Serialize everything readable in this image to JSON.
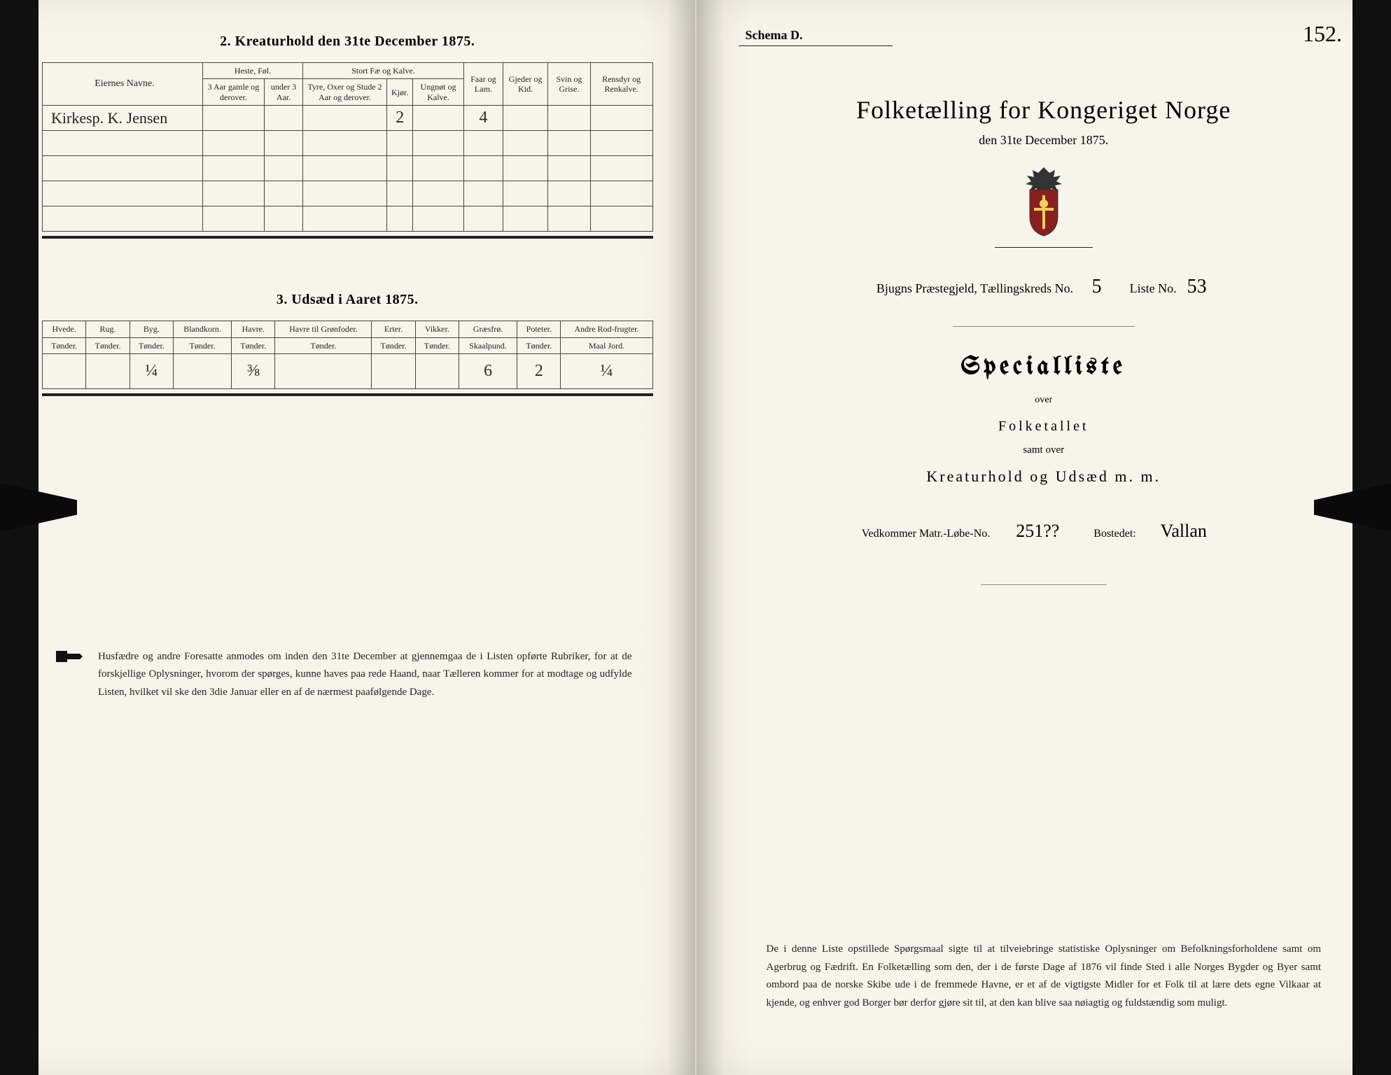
{
  "colors": {
    "paper": "#f7f4eb",
    "ink": "#222222",
    "rule": "#444444",
    "shadow": "#1a1a1a",
    "handwriting": "#2a2a2a"
  },
  "left_page": {
    "section2": {
      "title": "2.  Kreaturhold den 31te December 1875.",
      "owner_header": "Eiernes Navne.",
      "group_headers": {
        "heste": "Heste, Føl.",
        "stort": "Stort Fæ og Kalve."
      },
      "col_headers": {
        "heste_a": "3 Aar gamle og derover.",
        "heste_b": "under 3 Aar.",
        "stort_a": "Tyre, Oxer og Stude 2 Aar og derover.",
        "stort_b": "Kjør.",
        "stort_c": "Ungnøt og Kalve.",
        "faar": "Faar og Lam.",
        "gjeder": "Gjeder og Kid.",
        "svin": "Svin og Grise.",
        "rensdyr": "Rensdyr og Renkalve."
      },
      "rows": [
        {
          "owner": "Kirkesp. K. Jensen",
          "heste_a": "",
          "heste_b": "",
          "stort_a": "",
          "stort_b": "2",
          "stort_c": "",
          "faar": "4",
          "gjeder": "",
          "svin": "",
          "rensdyr": ""
        },
        {
          "owner": "",
          "heste_a": "",
          "heste_b": "",
          "stort_a": "",
          "stort_b": "",
          "stort_c": "",
          "faar": "",
          "gjeder": "",
          "svin": "",
          "rensdyr": ""
        },
        {
          "owner": "",
          "heste_a": "",
          "heste_b": "",
          "stort_a": "",
          "stort_b": "",
          "stort_c": "",
          "faar": "",
          "gjeder": "",
          "svin": "",
          "rensdyr": ""
        },
        {
          "owner": "",
          "heste_a": "",
          "heste_b": "",
          "stort_a": "",
          "stort_b": "",
          "stort_c": "",
          "faar": "",
          "gjeder": "",
          "svin": "",
          "rensdyr": ""
        },
        {
          "owner": "",
          "heste_a": "",
          "heste_b": "",
          "stort_a": "",
          "stort_b": "",
          "stort_c": "",
          "faar": "",
          "gjeder": "",
          "svin": "",
          "rensdyr": ""
        }
      ]
    },
    "section3": {
      "title": "3.  Udsæd i Aaret 1875.",
      "col_headers": {
        "hvede": "Hvede.",
        "rug": "Rug.",
        "byg": "Byg.",
        "blandkorn": "Blandkorn.",
        "havre": "Havre.",
        "havre_gron": "Havre til Grønfoder.",
        "erter": "Erter.",
        "vikker": "Vikker.",
        "graesfro": "Græsfrø.",
        "poteter": "Poteter.",
        "andre": "Andre Rod-frugter."
      },
      "unit_row": {
        "hvede": "Tønder.",
        "rug": "Tønder.",
        "byg": "Tønder.",
        "blandkorn": "Tønder.",
        "havre": "Tønder.",
        "havre_gron": "Tønder.",
        "erter": "Tønder.",
        "vikker": "Tønder.",
        "graesfro": "Skaalpund.",
        "poteter": "Tønder.",
        "andre": "Maal Jord."
      },
      "data_row": {
        "hvede": "",
        "rug": "",
        "byg": "¼",
        "blandkorn": "",
        "havre": "⅜",
        "havre_gron": "",
        "erter": "",
        "vikker": "",
        "graesfro": "6",
        "poteter": "2",
        "andre": "¼"
      }
    },
    "footnote": "Husfædre og andre Foresatte anmodes om inden den 31te December at gjennemgaa de i Listen opførte Rubriker, for at de forskjellige Oplysninger, hvorom der spørges, kunne haves paa rede Haand, naar Tælleren kommer for at modtage og udfylde Listen, hvilket vil ske den 3die Januar eller en af de nærmest paafølgende Dage."
  },
  "right_page": {
    "schema_label": "Schema D.",
    "folio": "152.",
    "main_title": "Folketælling for Kongeriget Norge",
    "subtitle": "den 31te December 1875.",
    "meta": {
      "prefix": "Bjugns  Præstegjeld,  Tællingskreds No.",
      "kreds_no": "5",
      "liste_label": "Liste No.",
      "liste_no": "53"
    },
    "specialliste": "Specialliste",
    "over": "over",
    "folketallet": "Folketallet",
    "samt_over": "samt over",
    "kreatur": "Kreaturhold  og  Udsæd  m.  m.",
    "vedkommer": {
      "prefix": "Vedkommer Matr.-Løbe-No.",
      "matr_no": "251??",
      "bostedet_label": "Bostedet:",
      "bostedet": "Vallan"
    },
    "footnote": "De i denne Liste opstillede Spørgsmaal sigte til at tilveiebringe statistiske Oplysninger om Befolkningsforholdene samt om Agerbrug og Fædrift.  En Folketælling som den, der i de første Dage af 1876 vil finde Sted i alle Norges Bygder og Byer samt ombord paa de norske Skibe ude i de fremmede Havne, er et af de vigtigste Midler for et Folk til at lære dets egne Vilkaar at kjende, og enhver god Borger bør derfor gjøre sit til, at den kan blive saa nøiagtig og fuldstændig som muligt."
  }
}
